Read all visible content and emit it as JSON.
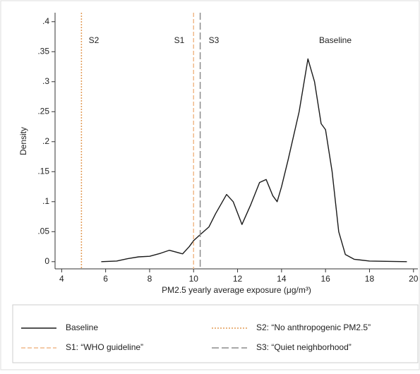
{
  "chart_data": {
    "type": "density",
    "xlabel": "PM2.5 yearly average exposure (μg/m³)",
    "ylabel": "Density",
    "annotations": [
      "S2",
      "S1",
      "S3",
      "Baseline"
    ],
    "xlim": [
      3.7,
      20.2
    ],
    "xticks": [
      4,
      6,
      8,
      10,
      12,
      14,
      16,
      18,
      20
    ],
    "ylim": [
      -0.012,
      0.415
    ],
    "yticks": [
      0,
      {
        "value": 0.05,
        "label": ".05"
      },
      {
        "value": 0.1,
        "label": ".1"
      },
      {
        "value": 0.15,
        "label": ".15"
      },
      {
        "value": 0.2,
        "label": ".2"
      },
      {
        "value": 0.25,
        "label": ".25"
      },
      {
        "value": 0.3,
        "label": ".3"
      },
      {
        "value": 0.35,
        "label": ".35"
      },
      {
        "value": 0.4,
        "label": ".4"
      }
    ],
    "series": [
      {
        "name": "Baseline",
        "color": "#1a1a1a",
        "style": "solid",
        "x": [
          5.8,
          6.5,
          7,
          7.5,
          8,
          8.5,
          8.9,
          9.2,
          9.5,
          9.8,
          10,
          10.3,
          10.7,
          11,
          11.5,
          11.8,
          12.2,
          12.6,
          13,
          13.3,
          13.6,
          13.8,
          14,
          14.3,
          14.8,
          15.2,
          15.5,
          15.8,
          16,
          16.3,
          16.6,
          16.9,
          17.3,
          18,
          19.7
        ],
        "values": [
          0,
          0.001,
          0.005,
          0.008,
          0.009,
          0.014,
          0.019,
          0.016,
          0.013,
          0.025,
          0.035,
          0.045,
          0.058,
          0.08,
          0.112,
          0.1,
          0.062,
          0.095,
          0.132,
          0.137,
          0.11,
          0.1,
          0.125,
          0.17,
          0.25,
          0.338,
          0.3,
          0.23,
          0.22,
          0.15,
          0.05,
          0.012,
          0.004,
          0.001,
          0
        ]
      },
      {
        "name": "S2: “No anthropogenic PM2.5”",
        "color": "#e39a55",
        "style": "dotted",
        "x": 4.9
      },
      {
        "name": "S1: “WHO guideline”",
        "color": "#f0b98a",
        "style": "dashed",
        "x": 10.0
      },
      {
        "name": "S3: “Quiet neighborhood”",
        "color": "#8c8c8c",
        "style": "longdash",
        "x": 10.3
      }
    ]
  }
}
